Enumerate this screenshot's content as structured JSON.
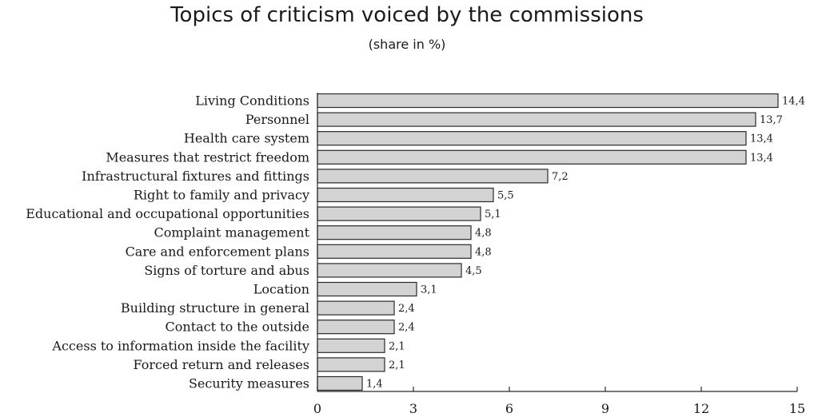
{
  "chart_data": {
    "type": "bar",
    "orientation": "horizontal",
    "title": "Topics of criticism voiced by the commissions",
    "subtitle": "(share in %)",
    "xlabel": "",
    "ylabel": "",
    "categories": [
      "Living Conditions",
      "Personnel",
      "Health care system",
      "Measures that restrict freedom",
      "Infrastructural fixtures and fittings",
      "Right to family and privacy",
      "Educational and occupational opportunities",
      "Complaint management",
      "Care and enforcement plans",
      "Signs of torture and abus",
      "Location",
      "Building structure in general",
      "Contact to the outside",
      "Access to information inside the facility",
      "Forced return and releases",
      "Security measures"
    ],
    "values": [
      14.4,
      13.7,
      13.4,
      13.4,
      7.2,
      5.5,
      5.1,
      4.8,
      4.8,
      4.5,
      3.1,
      2.4,
      2.4,
      2.1,
      2.1,
      1.4
    ],
    "value_labels": [
      "14,4",
      "13,7",
      "13,4",
      "13,4",
      "7,2",
      "5,5",
      "5,1",
      "4,8",
      "4,8",
      "4,5",
      "3,1",
      "2,4",
      "2,4",
      "2,1",
      "2,1",
      "1,4"
    ],
    "xlim": [
      0,
      15
    ],
    "xticks": [
      0,
      3,
      6,
      9,
      12,
      15
    ],
    "grid": false,
    "bar_color": "#d3d3d3",
    "bar_edge_color": "#2a2a2a"
  }
}
